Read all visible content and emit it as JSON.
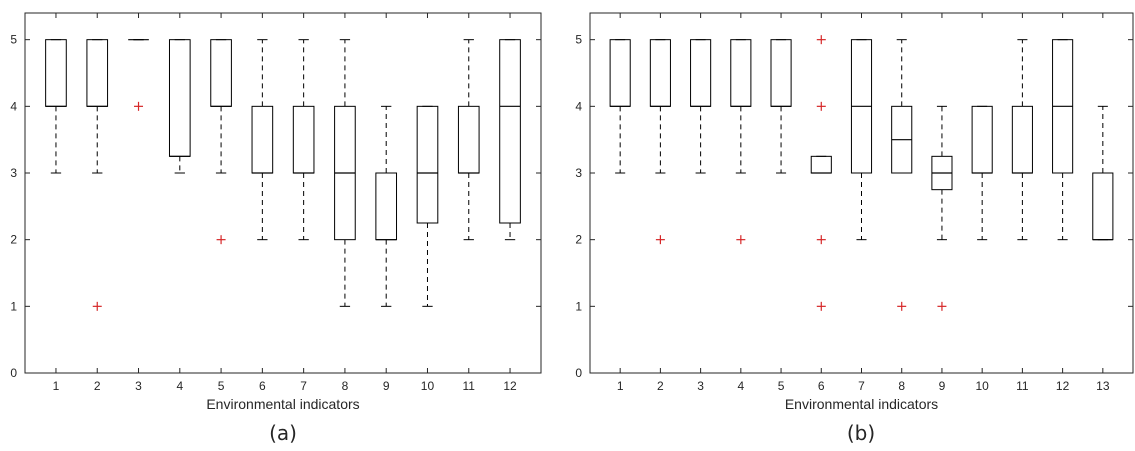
{
  "chart_data": [
    {
      "type": "boxplot",
      "caption": "(a)",
      "xlabel": "Environmental indicators",
      "ylabel": "",
      "ylim": [
        0,
        5.4
      ],
      "yticks": [
        0,
        1,
        2,
        3,
        4,
        5
      ],
      "grid": false,
      "categories": [
        "1",
        "2",
        "3",
        "4",
        "5",
        "6",
        "7",
        "8",
        "9",
        "10",
        "11",
        "12"
      ],
      "boxes": [
        {
          "q1": 4,
          "median": 4,
          "q3": 5,
          "whisker_low": 3,
          "whisker_high": 5,
          "outliers": []
        },
        {
          "q1": 4,
          "median": 4,
          "q3": 5,
          "whisker_low": 3,
          "whisker_high": 5,
          "outliers": [
            1
          ]
        },
        {
          "q1": 5,
          "median": 5,
          "q3": 5,
          "whisker_low": 5,
          "whisker_high": 5,
          "outliers": [
            4
          ]
        },
        {
          "q1": 3.25,
          "median": 3.25,
          "q3": 5,
          "whisker_low": 3,
          "whisker_high": 5,
          "outliers": []
        },
        {
          "q1": 4,
          "median": 4,
          "q3": 5,
          "whisker_low": 3,
          "whisker_high": 5,
          "outliers": [
            2
          ]
        },
        {
          "q1": 3,
          "median": 3,
          "q3": 4,
          "whisker_low": 2,
          "whisker_high": 5,
          "outliers": []
        },
        {
          "q1": 3,
          "median": 3,
          "q3": 4,
          "whisker_low": 2,
          "whisker_high": 5,
          "outliers": []
        },
        {
          "q1": 2,
          "median": 3,
          "q3": 4,
          "whisker_low": 1,
          "whisker_high": 5,
          "outliers": []
        },
        {
          "q1": 2,
          "median": 2,
          "q3": 3,
          "whisker_low": 1,
          "whisker_high": 4,
          "outliers": []
        },
        {
          "q1": 2.25,
          "median": 3,
          "q3": 4,
          "whisker_low": 1,
          "whisker_high": 4,
          "outliers": []
        },
        {
          "q1": 3,
          "median": 3,
          "q3": 4,
          "whisker_low": 2,
          "whisker_high": 5,
          "outliers": []
        },
        {
          "q1": 2.25,
          "median": 4,
          "q3": 5,
          "whisker_low": 2,
          "whisker_high": 5,
          "outliers": []
        }
      ]
    },
    {
      "type": "boxplot",
      "caption": "(b)",
      "xlabel": "Environmental indicators",
      "ylabel": "",
      "ylim": [
        0,
        5.4
      ],
      "yticks": [
        0,
        1,
        2,
        3,
        4,
        5
      ],
      "grid": false,
      "categories": [
        "1",
        "2",
        "3",
        "4",
        "5",
        "6",
        "7",
        "8",
        "9",
        "10",
        "11",
        "12",
        "13"
      ],
      "boxes": [
        {
          "q1": 4,
          "median": 4,
          "q3": 5,
          "whisker_low": 3,
          "whisker_high": 5,
          "outliers": []
        },
        {
          "q1": 4,
          "median": 4,
          "q3": 5,
          "whisker_low": 3,
          "whisker_high": 5,
          "outliers": [
            2
          ]
        },
        {
          "q1": 4,
          "median": 4,
          "q3": 5,
          "whisker_low": 3,
          "whisker_high": 5,
          "outliers": []
        },
        {
          "q1": 4,
          "median": 4,
          "q3": 5,
          "whisker_low": 3,
          "whisker_high": 5,
          "outliers": [
            2
          ]
        },
        {
          "q1": 4,
          "median": 4,
          "q3": 5,
          "whisker_low": 3,
          "whisker_high": 5,
          "outliers": []
        },
        {
          "q1": 3,
          "median": 3,
          "q3": 3.25,
          "whisker_low": 3,
          "whisker_high": 3.25,
          "outliers": [
            5,
            4,
            2,
            1
          ]
        },
        {
          "q1": 3,
          "median": 4,
          "q3": 5,
          "whisker_low": 2,
          "whisker_high": 5,
          "outliers": []
        },
        {
          "q1": 3,
          "median": 3.5,
          "q3": 4,
          "whisker_low": 3,
          "whisker_high": 5,
          "outliers": [
            1
          ]
        },
        {
          "q1": 2.75,
          "median": 3,
          "q3": 3.25,
          "whisker_low": 2,
          "whisker_high": 4,
          "outliers": [
            1
          ]
        },
        {
          "q1": 3,
          "median": 3,
          "q3": 4,
          "whisker_low": 2,
          "whisker_high": 4,
          "outliers": []
        },
        {
          "q1": 3,
          "median": 3,
          "q3": 4,
          "whisker_low": 2,
          "whisker_high": 5,
          "outliers": []
        },
        {
          "q1": 3,
          "median": 4,
          "q3": 5,
          "whisker_low": 2,
          "whisker_high": 5,
          "outliers": []
        },
        {
          "q1": 2,
          "median": 2,
          "q3": 3,
          "whisker_low": 2,
          "whisker_high": 4,
          "outliers": []
        }
      ]
    }
  ],
  "colors": {
    "box": "#000000",
    "outlier": "#d62728",
    "axis": "#262626",
    "whisker": "#000000"
  }
}
